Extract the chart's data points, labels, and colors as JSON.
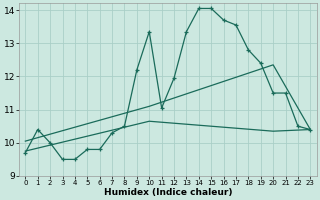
{
  "title": "",
  "xlabel": "Humidex (Indice chaleur)",
  "xlim": [
    -0.5,
    23.5
  ],
  "ylim": [
    9,
    14.2
  ],
  "yticks": [
    9,
    10,
    11,
    12,
    13,
    14
  ],
  "xticks": [
    0,
    1,
    2,
    3,
    4,
    5,
    6,
    7,
    8,
    9,
    10,
    11,
    12,
    13,
    14,
    15,
    16,
    17,
    18,
    19,
    20,
    21,
    22,
    23
  ],
  "bg_color": "#cce8e0",
  "grid_color": "#aacfc7",
  "line_color": "#1a6b5a",
  "line1_x": [
    0,
    1,
    2,
    3,
    4,
    5,
    6,
    7,
    8,
    9,
    10,
    11,
    12,
    13,
    14,
    15,
    16,
    17,
    18,
    19,
    20,
    21,
    22,
    23
  ],
  "line1_y": [
    9.7,
    10.4,
    10.0,
    9.5,
    9.5,
    9.8,
    9.8,
    10.3,
    10.5,
    12.2,
    13.35,
    11.05,
    11.95,
    13.35,
    14.05,
    14.05,
    13.7,
    13.55,
    12.8,
    12.4,
    11.5,
    11.5,
    10.5,
    10.4
  ],
  "line2_x": [
    0,
    10,
    20,
    23
  ],
  "line2_y": [
    10.05,
    11.1,
    12.35,
    10.4
  ],
  "line3_x": [
    0,
    10,
    20,
    23
  ],
  "line3_y": [
    9.75,
    10.65,
    10.35,
    10.4
  ]
}
